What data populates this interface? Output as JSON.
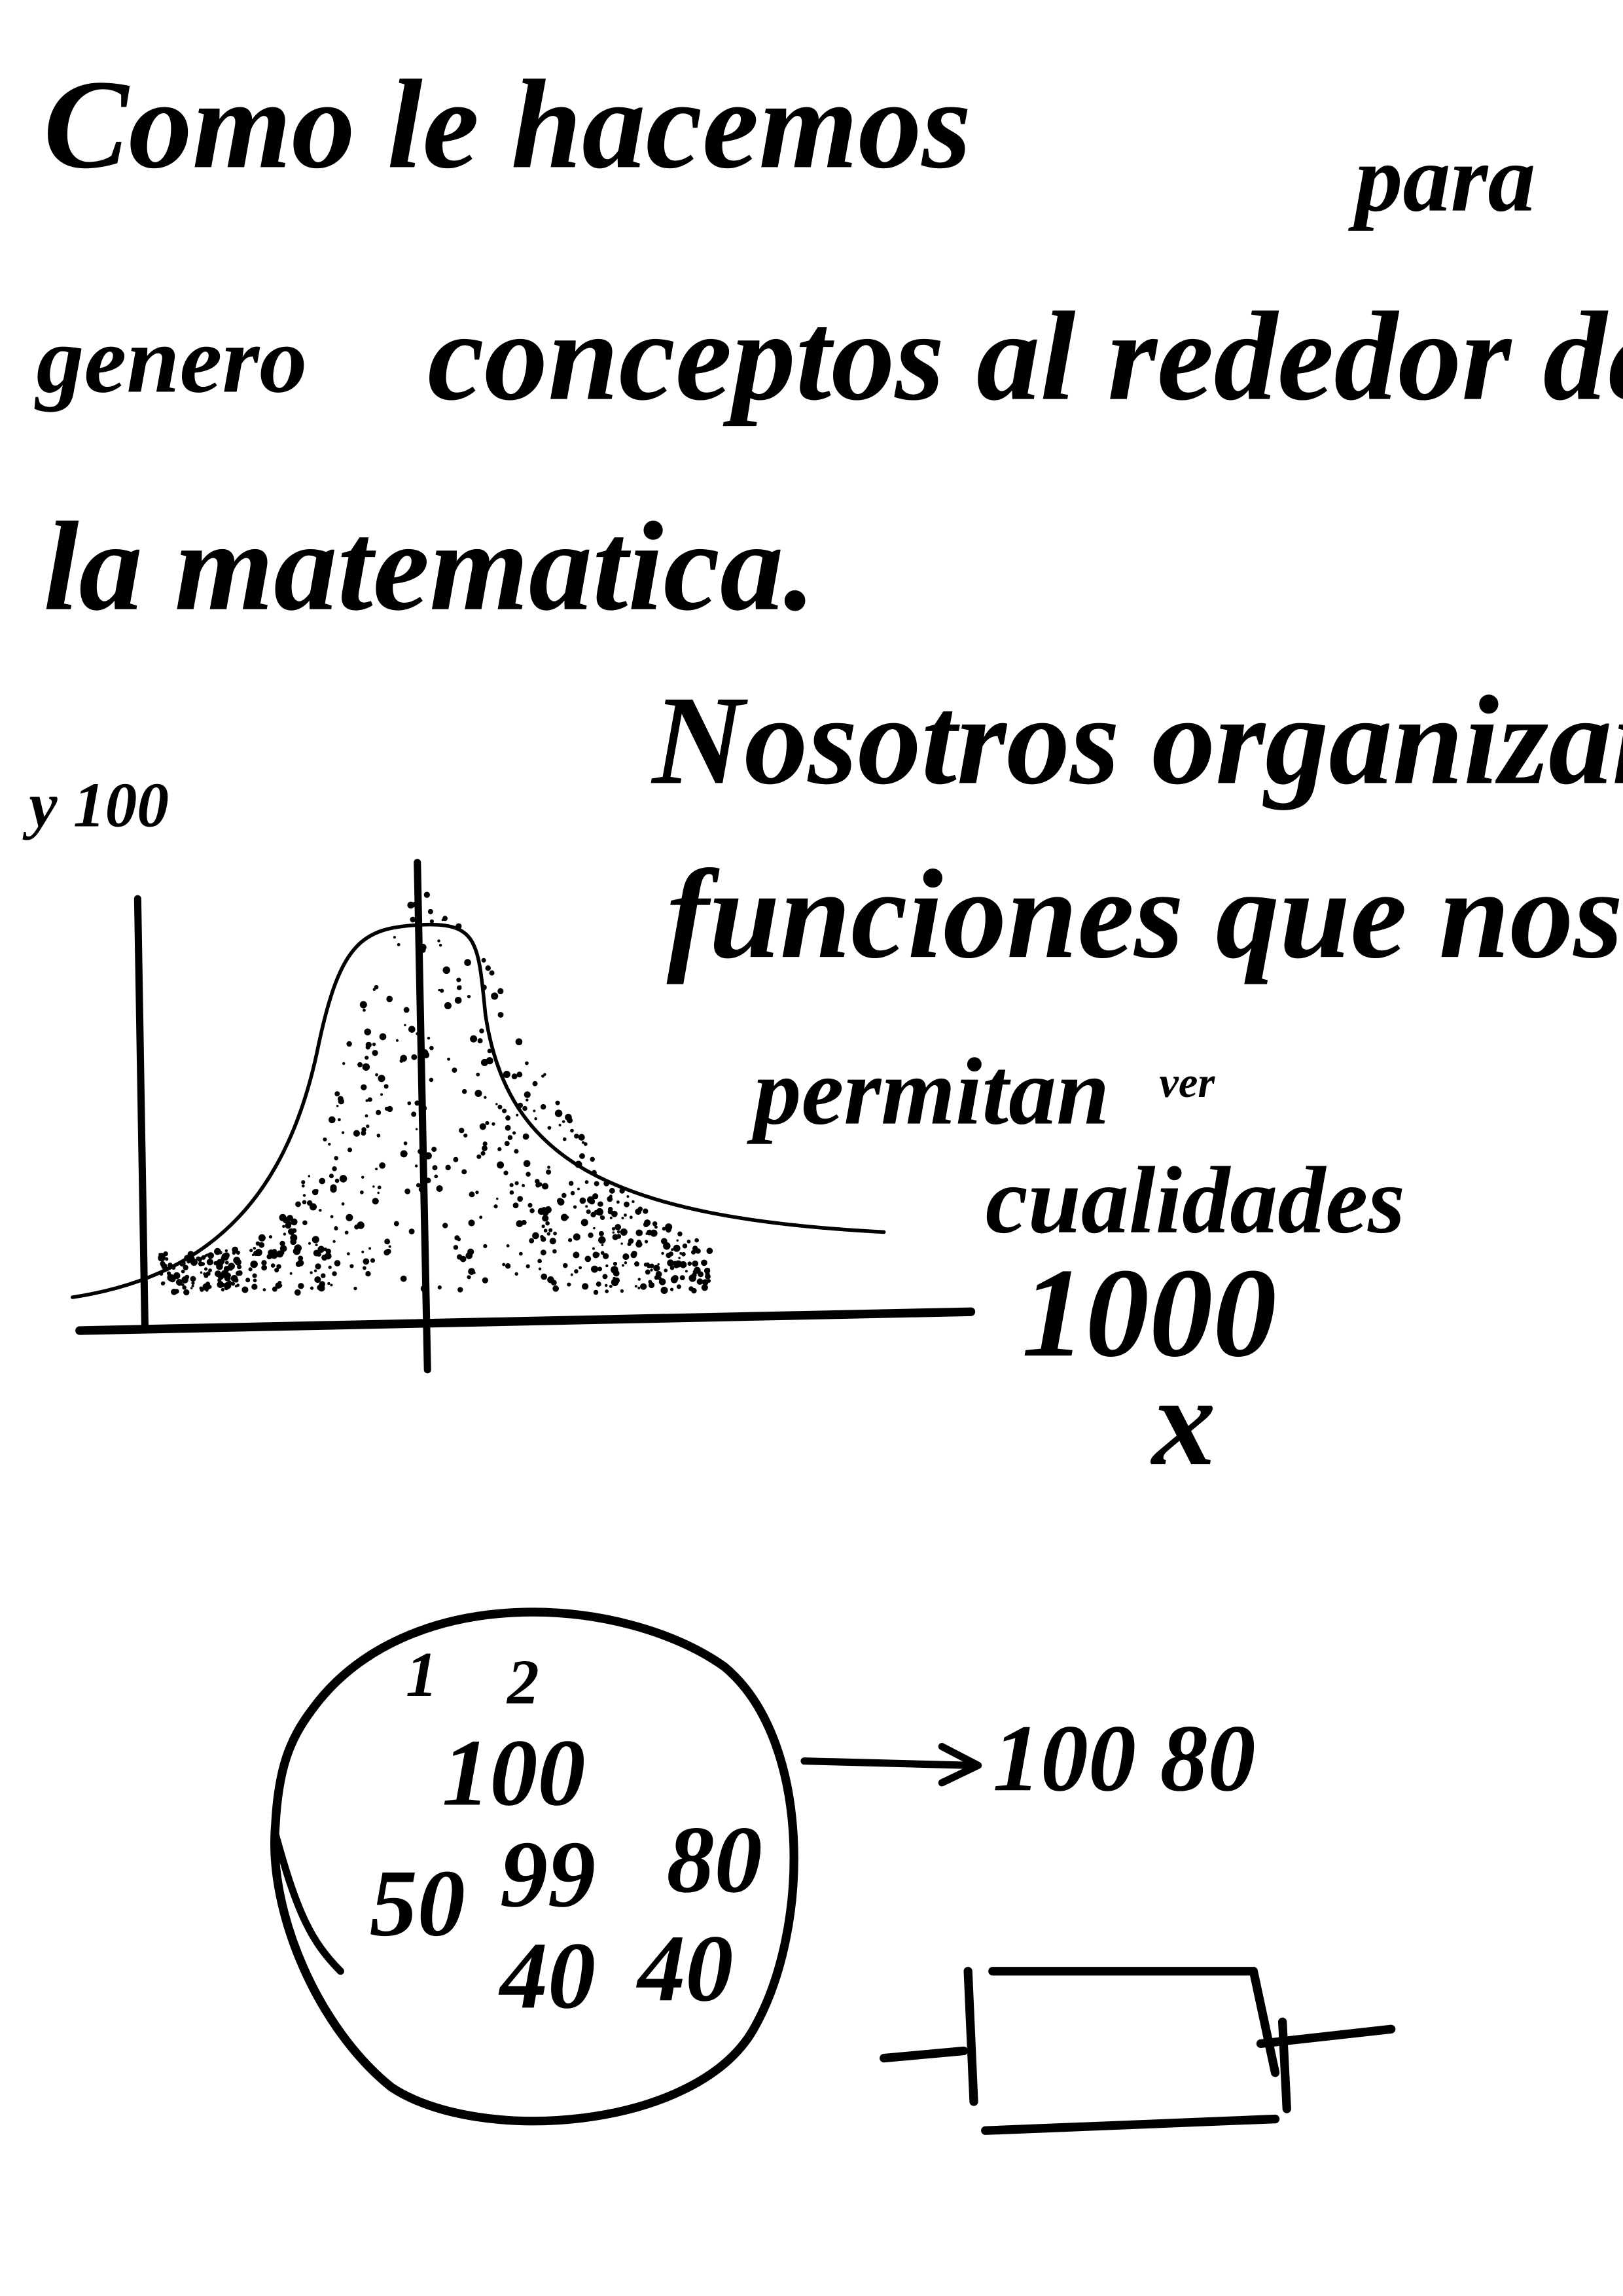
{
  "heading": {
    "lines": [
      "Como le hacemos",
      "para",
      "genero",
      "conceptos al rededor de",
      "la matematica."
    ]
  },
  "graph": {
    "y_label": "y 100"
  },
  "notes": {
    "lines": [
      "Nosotros organizamos",
      "funciones que nos",
      "permitan",
      "ver",
      "cualidades",
      "1000",
      "x"
    ]
  },
  "diagram": {
    "circle_items": [
      "1",
      "2",
      "100",
      "50",
      "99",
      "80",
      "40",
      "40"
    ],
    "arrow_result": "100 80"
  }
}
